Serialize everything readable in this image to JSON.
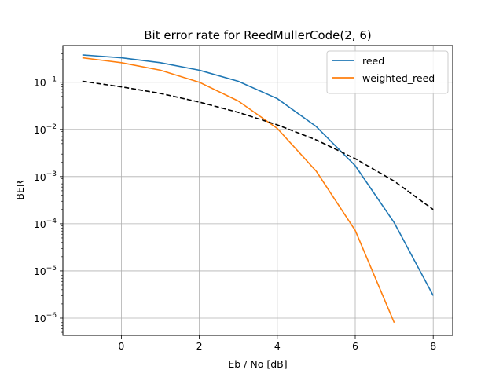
{
  "chart_data": {
    "type": "line",
    "title": "Bit error rate for ReedMullerCode(2, 6)",
    "xlabel": "Eb / No [dB]",
    "ylabel": "BER",
    "xlim": [
      -1.5,
      8.5
    ],
    "ylim": [
      4.3e-07,
      0.6
    ],
    "yscale": "log",
    "grid": true,
    "legend_position": "top-right",
    "x_ticks": [
      0,
      2,
      4,
      6,
      8
    ],
    "y_ticks": [
      {
        "value": 1e-06,
        "base": "10",
        "exp": "−6"
      },
      {
        "value": 1e-05,
        "base": "10",
        "exp": "−5"
      },
      {
        "value": 0.0001,
        "base": "10",
        "exp": "−4"
      },
      {
        "value": 0.001,
        "base": "10",
        "exp": "−3"
      },
      {
        "value": 0.01,
        "base": "10",
        "exp": "−2"
      },
      {
        "value": 0.1,
        "base": "10",
        "exp": "−1"
      }
    ],
    "series": [
      {
        "name": "reed",
        "color": "#1f77b4",
        "style": "solid",
        "in_legend": true,
        "x": [
          -1,
          0,
          1,
          2,
          3,
          4,
          5,
          6,
          7,
          8
        ],
        "y": [
          0.38,
          0.33,
          0.26,
          0.18,
          0.105,
          0.045,
          0.0115,
          0.0017,
          0.000105,
          3e-06
        ]
      },
      {
        "name": "weighted_reed",
        "color": "#ff7f0e",
        "style": "solid",
        "in_legend": true,
        "x": [
          -1,
          0,
          1,
          2,
          3,
          4,
          5,
          6,
          7
        ],
        "y": [
          0.33,
          0.26,
          0.18,
          0.1,
          0.04,
          0.0105,
          0.0013,
          7.2e-05,
          8e-07
        ]
      },
      {
        "name": "",
        "color": "#000000",
        "style": "dashed",
        "in_legend": false,
        "x": [
          -1,
          0,
          1,
          2,
          3,
          4,
          5,
          6,
          7,
          8
        ],
        "y": [
          0.105,
          0.08,
          0.058,
          0.038,
          0.023,
          0.0125,
          0.006,
          0.0024,
          0.0008,
          0.0002
        ]
      }
    ]
  }
}
